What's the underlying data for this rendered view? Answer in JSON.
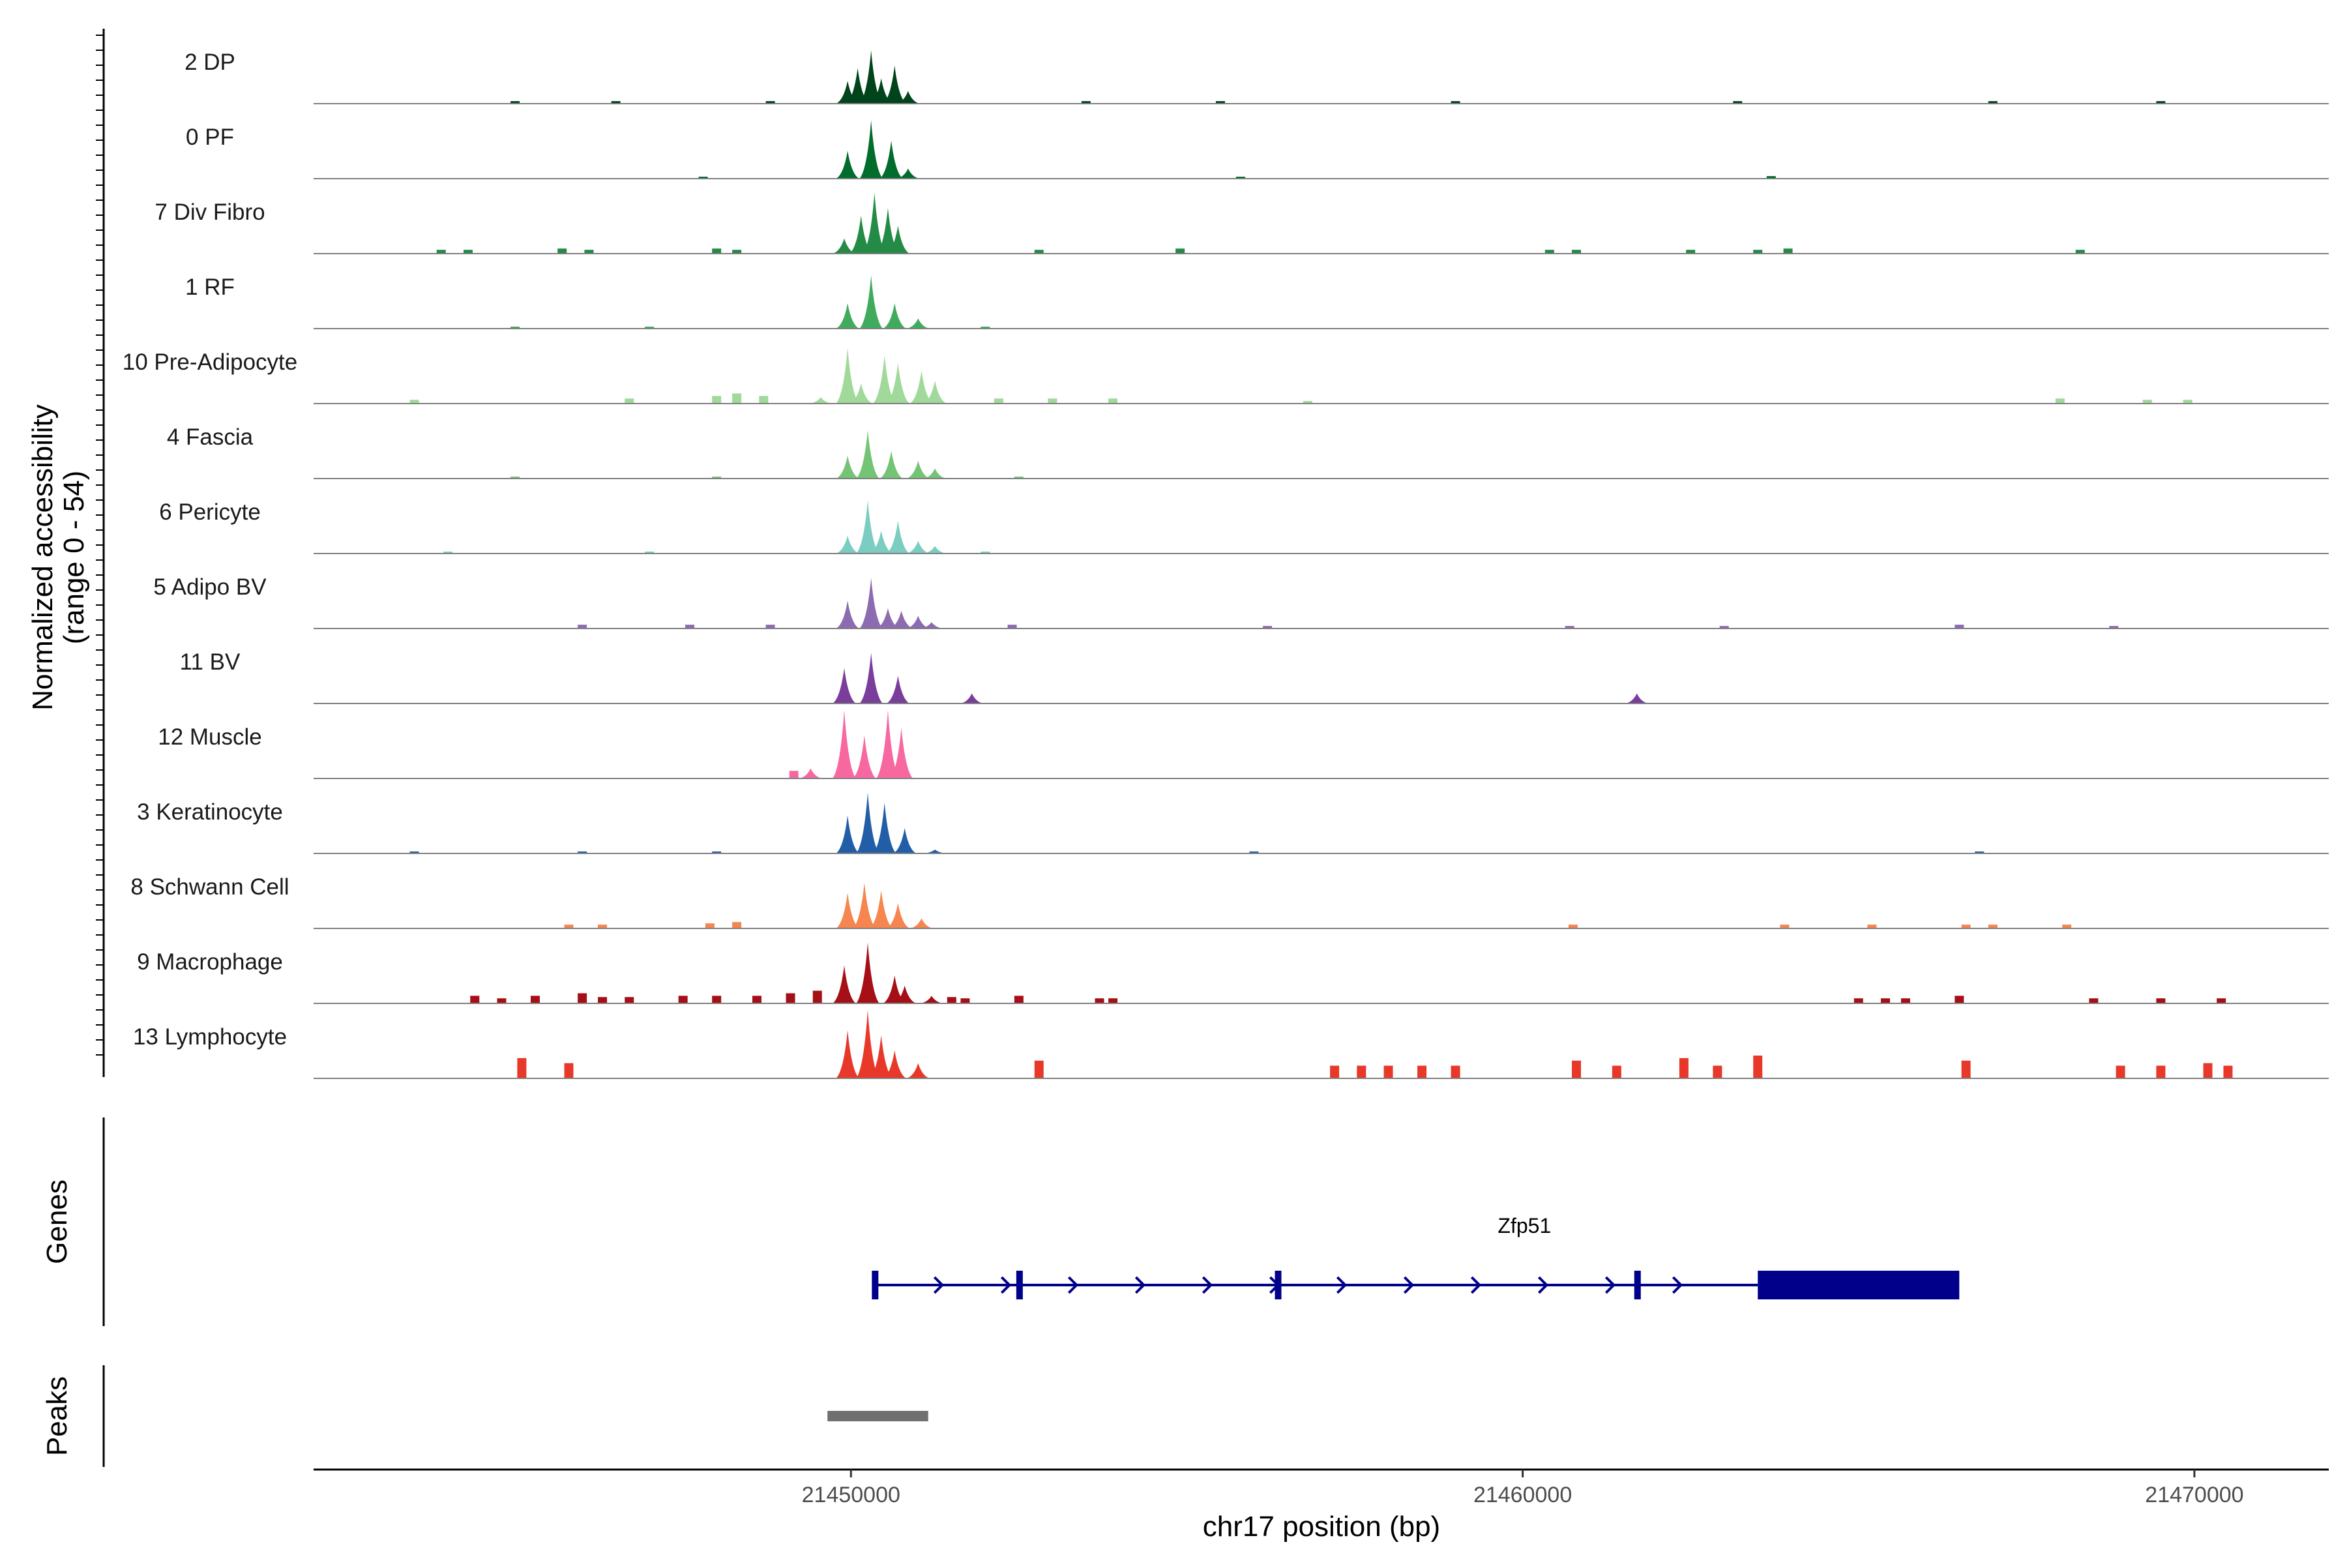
{
  "chart_data": {
    "type": "area",
    "chromosome": "chr17",
    "xlabel": "chr17 position (bp)",
    "ylabel_line1": "Normalized accessibility",
    "ylabel_line2": "(range 0 - 54)",
    "y_range": [
      0,
      54
    ],
    "xlim": [
      21442000,
      21472000
    ],
    "x_ticks": [
      21450000,
      21460000,
      21470000
    ],
    "x_tick_labels": [
      "21450000",
      "21460000",
      "21470000"
    ],
    "genes_label": "Genes",
    "peaks_label": "Peaks",
    "tracks": [
      {
        "name": "2 DP",
        "color": "#00441b",
        "peaks": [
          [
            21449950,
            18
          ],
          [
            21450100,
            28
          ],
          [
            21450300,
            42
          ],
          [
            21450450,
            20
          ],
          [
            21450650,
            30
          ],
          [
            21450850,
            10
          ]
        ],
        "noise": [
          [
            21445000,
            2
          ],
          [
            21446500,
            2
          ],
          [
            21448800,
            2
          ],
          [
            21453500,
            2
          ],
          [
            21455500,
            2
          ],
          [
            21459000,
            2
          ],
          [
            21463200,
            2
          ],
          [
            21467000,
            2
          ],
          [
            21469500,
            2
          ]
        ]
      },
      {
        "name": "0 PF",
        "color": "#006d2c",
        "peaks": [
          [
            21449950,
            22
          ],
          [
            21450300,
            46
          ],
          [
            21450600,
            30
          ],
          [
            21450850,
            8
          ]
        ],
        "noise": [
          [
            21447800,
            1
          ],
          [
            21455800,
            1
          ],
          [
            21463700,
            2
          ]
        ]
      },
      {
        "name": "7 Div Fibro",
        "color": "#238b45",
        "peaks": [
          [
            21449900,
            12
          ],
          [
            21450150,
            30
          ],
          [
            21450350,
            48
          ],
          [
            21450550,
            36
          ],
          [
            21450700,
            22
          ]
        ],
        "noise": [
          [
            21443900,
            3
          ],
          [
            21444300,
            3
          ],
          [
            21445700,
            4
          ],
          [
            21446100,
            3
          ],
          [
            21448000,
            4
          ],
          [
            21448300,
            3
          ],
          [
            21452800,
            3
          ],
          [
            21454900,
            4
          ],
          [
            21460400,
            3
          ],
          [
            21460800,
            3
          ],
          [
            21462500,
            3
          ],
          [
            21463500,
            3
          ],
          [
            21463950,
            4
          ],
          [
            21468300,
            3
          ]
        ]
      },
      {
        "name": "1 RF",
        "color": "#41ab5d",
        "peaks": [
          [
            21449950,
            20
          ],
          [
            21450300,
            42
          ],
          [
            21450650,
            20
          ],
          [
            21451000,
            8
          ]
        ],
        "noise": [
          [
            21445000,
            1
          ],
          [
            21447000,
            1
          ],
          [
            21452000,
            1
          ]
        ]
      },
      {
        "name": "10 Pre-Adipocyte",
        "color": "#a1d99b",
        "peaks": [
          [
            21449550,
            5
          ],
          [
            21449950,
            44
          ],
          [
            21450150,
            16
          ],
          [
            21450500,
            38
          ],
          [
            21450700,
            32
          ],
          [
            21451050,
            26
          ],
          [
            21451250,
            18
          ]
        ],
        "noise": [
          [
            21443500,
            3
          ],
          [
            21446700,
            4
          ],
          [
            21448000,
            6
          ],
          [
            21448300,
            8
          ],
          [
            21448700,
            6
          ],
          [
            21452200,
            4
          ],
          [
            21453000,
            4
          ],
          [
            21453900,
            4
          ],
          [
            21456800,
            2
          ],
          [
            21468000,
            4
          ],
          [
            21469300,
            3
          ],
          [
            21469900,
            3
          ]
        ]
      },
      {
        "name": "4 Fascia",
        "color": "#74c476",
        "peaks": [
          [
            21449950,
            18
          ],
          [
            21450250,
            38
          ],
          [
            21450600,
            22
          ],
          [
            21451000,
            14
          ],
          [
            21451250,
            8
          ]
        ],
        "noise": [
          [
            21445000,
            1
          ],
          [
            21448000,
            1
          ],
          [
            21452500,
            1
          ]
        ]
      },
      {
        "name": "6 Pericyte",
        "color": "#7ccdc1",
        "peaks": [
          [
            21449950,
            14
          ],
          [
            21450250,
            42
          ],
          [
            21450450,
            18
          ],
          [
            21450700,
            26
          ],
          [
            21451000,
            10
          ],
          [
            21451250,
            6
          ]
        ],
        "noise": [
          [
            21444000,
            1
          ],
          [
            21447000,
            1
          ],
          [
            21452000,
            1
          ]
        ]
      },
      {
        "name": "5 Adipo BV",
        "color": "#8c6bb1",
        "peaks": [
          [
            21449950,
            22
          ],
          [
            21450300,
            40
          ],
          [
            21450550,
            16
          ],
          [
            21450750,
            14
          ],
          [
            21451000,
            10
          ],
          [
            21451200,
            5
          ]
        ],
        "noise": [
          [
            21446000,
            3
          ],
          [
            21447600,
            3
          ],
          [
            21448800,
            3
          ],
          [
            21452400,
            3
          ],
          [
            21456200,
            2
          ],
          [
            21460700,
            2
          ],
          [
            21463000,
            2
          ],
          [
            21466500,
            3
          ],
          [
            21468800,
            2
          ]
        ]
      },
      {
        "name": "11 BV",
        "color": "#7a3d9c",
        "peaks": [
          [
            21449900,
            28
          ],
          [
            21450300,
            40
          ],
          [
            21450700,
            22
          ],
          [
            21451800,
            8
          ],
          [
            21461700,
            8
          ]
        ],
        "noise": []
      },
      {
        "name": "12 Muscle",
        "color": "#f768a1",
        "peaks": [
          [
            21449400,
            8
          ],
          [
            21449900,
            54
          ],
          [
            21450200,
            34
          ],
          [
            21450550,
            54
          ],
          [
            21450750,
            40
          ]
        ],
        "noise": [
          [
            21449150,
            6
          ]
        ]
      },
      {
        "name": "3 Keratinocyte",
        "color": "#225ea8",
        "peaks": [
          [
            21449950,
            30
          ],
          [
            21450250,
            48
          ],
          [
            21450500,
            40
          ],
          [
            21450800,
            20
          ],
          [
            21451250,
            3
          ]
        ],
        "noise": [
          [
            21443500,
            1
          ],
          [
            21446000,
            1
          ],
          [
            21448000,
            1
          ],
          [
            21456000,
            1
          ],
          [
            21466800,
            1
          ]
        ]
      },
      {
        "name": "8 Schwann Cell",
        "color": "#f6854f",
        "peaks": [
          [
            21449950,
            28
          ],
          [
            21450200,
            36
          ],
          [
            21450450,
            30
          ],
          [
            21450700,
            20
          ],
          [
            21451050,
            8
          ]
        ],
        "noise": [
          [
            21445800,
            3
          ],
          [
            21446300,
            3
          ],
          [
            21447900,
            4
          ],
          [
            21448300,
            5
          ],
          [
            21460750,
            3
          ],
          [
            21463900,
            3
          ],
          [
            21465200,
            3
          ],
          [
            21466600,
            3
          ],
          [
            21467000,
            3
          ],
          [
            21468100,
            3
          ]
        ]
      },
      {
        "name": "9 Macrophage",
        "color": "#a50f15",
        "peaks": [
          [
            21449900,
            30
          ],
          [
            21450250,
            48
          ],
          [
            21450650,
            22
          ],
          [
            21450800,
            14
          ],
          [
            21451200,
            6
          ]
        ],
        "noise": [
          [
            21444400,
            6
          ],
          [
            21444800,
            4
          ],
          [
            21445300,
            6
          ],
          [
            21446000,
            8
          ],
          [
            21446300,
            5
          ],
          [
            21446700,
            5
          ],
          [
            21447500,
            6
          ],
          [
            21448000,
            6
          ],
          [
            21448600,
            6
          ],
          [
            21449100,
            8
          ],
          [
            21449500,
            10
          ],
          [
            21451500,
            5
          ],
          [
            21451700,
            4
          ],
          [
            21452500,
            6
          ],
          [
            21453700,
            4
          ],
          [
            21453900,
            4
          ],
          [
            21465000,
            4
          ],
          [
            21465400,
            4
          ],
          [
            21465700,
            4
          ],
          [
            21466500,
            6
          ],
          [
            21468500,
            4
          ],
          [
            21469500,
            4
          ],
          [
            21470400,
            4
          ]
        ]
      },
      {
        "name": "13 Lymphocyte",
        "color": "#e8382a",
        "peaks": [
          [
            21449950,
            38
          ],
          [
            21450250,
            54
          ],
          [
            21450450,
            34
          ],
          [
            21450650,
            22
          ],
          [
            21451000,
            12
          ]
        ],
        "noise": [
          [
            21445100,
            16
          ],
          [
            21445800,
            12
          ],
          [
            21452800,
            14
          ],
          [
            21457200,
            10
          ],
          [
            21457600,
            10
          ],
          [
            21458000,
            10
          ],
          [
            21458500,
            10
          ],
          [
            21459000,
            10
          ],
          [
            21460800,
            14
          ],
          [
            21461400,
            10
          ],
          [
            21462400,
            16
          ],
          [
            21462900,
            10
          ],
          [
            21463500,
            18
          ],
          [
            21466600,
            14
          ],
          [
            21468900,
            10
          ],
          [
            21469500,
            10
          ],
          [
            21470200,
            12
          ],
          [
            21470500,
            10
          ]
        ]
      }
    ],
    "gene": {
      "name": "Zfp51",
      "strand": "+",
      "color": "#00008b",
      "start": 21450350,
      "end": 21466500,
      "exons": [
        [
          21450350,
          21450430
        ],
        [
          21452500,
          21452580
        ],
        [
          21456350,
          21456430
        ],
        [
          21461700,
          21461780
        ]
      ],
      "utr3": [
        21463500,
        21466500
      ]
    },
    "peaks_region": {
      "start": 21449650,
      "end": 21451150,
      "color": "#707070"
    }
  }
}
